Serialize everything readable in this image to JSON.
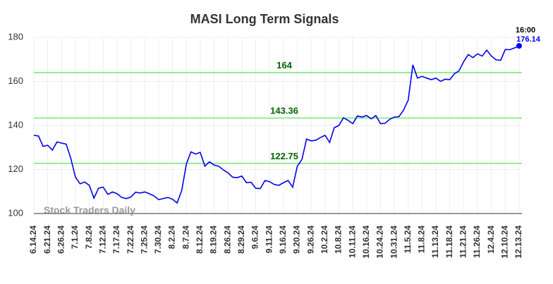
{
  "chart_data": {
    "type": "line",
    "title": "MASI Long Term Signals",
    "categories": [
      "6.14.24",
      null,
      null,
      "6.21.24",
      null,
      null,
      "6.26.24",
      null,
      null,
      "7.1.24",
      null,
      null,
      "7.8.24",
      null,
      null,
      "7.12.24",
      null,
      null,
      "7.17.24",
      null,
      null,
      "7.22.24",
      null,
      null,
      "7.25.24",
      null,
      null,
      "7.30.24",
      null,
      null,
      "8.2.24",
      null,
      null,
      "8.7.24",
      null,
      null,
      "8.12.24",
      null,
      null,
      "8.19.24",
      null,
      null,
      "8.26.24",
      null,
      null,
      "8.29.24",
      null,
      null,
      "9.6.24",
      null,
      null,
      "9.11.24",
      null,
      null,
      "9.16.24",
      null,
      null,
      "9.20.24",
      null,
      null,
      "9.26.24",
      null,
      null,
      "10.2.24",
      null,
      null,
      "10.8.24",
      null,
      null,
      "10.11.24",
      null,
      null,
      "10.16.24",
      null,
      null,
      "10.24.24",
      null,
      null,
      "10.31.24",
      null,
      null,
      "11.5.24",
      null,
      null,
      "11.8.24",
      null,
      null,
      "11.13.24",
      null,
      null,
      "11.18.24",
      null,
      null,
      "11.21.24",
      null,
      null,
      "11.26.24",
      null,
      null,
      "12.4.24",
      null,
      null,
      "12.10.24",
      null,
      null,
      "12.13.24"
    ],
    "values": [
      135.5,
      135.2,
      130.5,
      131,
      128.8,
      132.5,
      132,
      131.5,
      125,
      116.5,
      113.5,
      114.3,
      112.8,
      107,
      111.5,
      112,
      108.7,
      109.8,
      109,
      107.3,
      106.8,
      107.5,
      109.7,
      109.3,
      109.8,
      109,
      108,
      106.3,
      106.8,
      107.3,
      106.5,
      104.8,
      110.5,
      122.5,
      128,
      127,
      127.8,
      121.5,
      123.5,
      122,
      121.5,
      119.8,
      118.5,
      116.5,
      116.3,
      117,
      114,
      114.2,
      111.5,
      111.3,
      115,
      114.5,
      113.2,
      112.8,
      114,
      115,
      112,
      121.5,
      124.5,
      133.8,
      133,
      133.3,
      134.5,
      135.5,
      132.3,
      139,
      140,
      143.5,
      142.3,
      140.8,
      144.3,
      143.8,
      144.5,
      143,
      144.5,
      140.8,
      141,
      142.8,
      143.8,
      144,
      147,
      151.5,
      167.5,
      161.5,
      162.3,
      161.5,
      160.8,
      161.5,
      160,
      161,
      160.8,
      163.5,
      164.8,
      169,
      172.2,
      170.8,
      172.5,
      171.5,
      174.2,
      171.5,
      169.8,
      169.6,
      174.5,
      174.4,
      175.2,
      176.14
    ],
    "color": "#0000ee",
    "ylim": [
      100,
      180
    ],
    "yticks": [
      100,
      120,
      140,
      160,
      180
    ],
    "grid": true,
    "hlines": [
      164,
      143.36,
      122.75
    ],
    "hline_color": "#90ee90",
    "annotation": "16:00",
    "watermark": "Stock Traders Daily"
  }
}
